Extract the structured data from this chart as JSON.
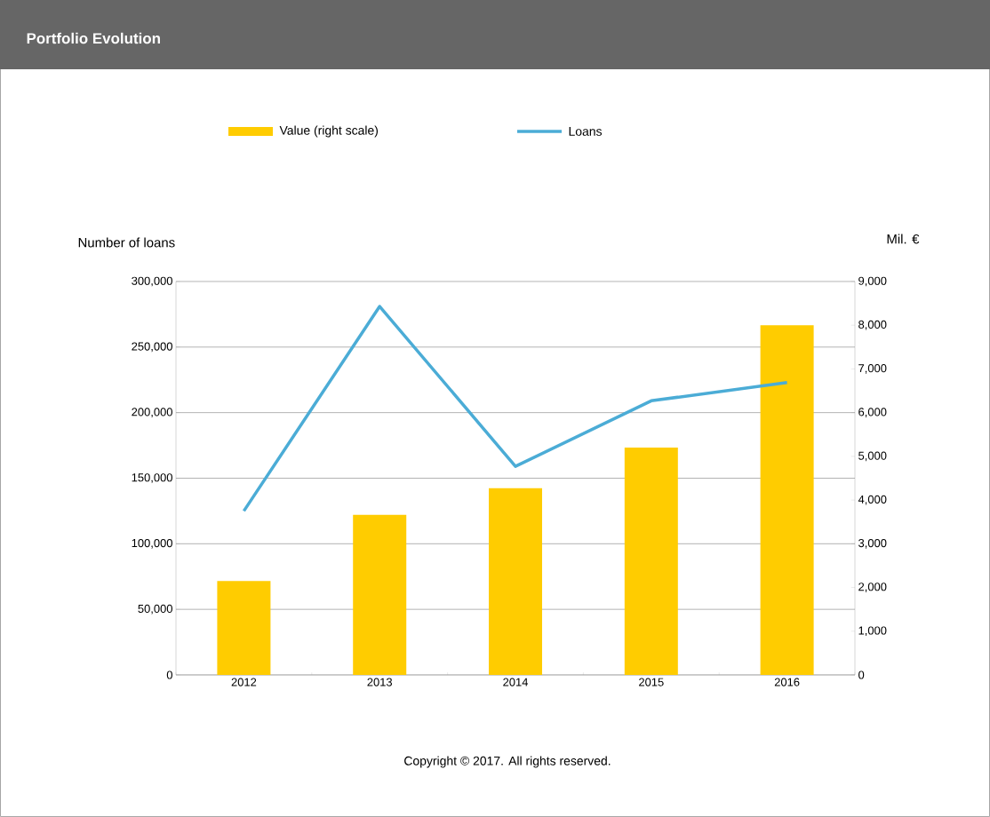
{
  "chart_data": {
    "type": "bar",
    "title": "Portfolio Evolution",
    "ylabel": "Number of loans",
    "y2label": "Mil. €",
    "categories": [
      "2012",
      "2013",
      "2014",
      "2015",
      "2016"
    ],
    "series": [
      {
        "name": "Value (right scale)",
        "axis": "y2",
        "color": "#ffcc00",
        "values": [
          2150,
          3660,
          4270,
          5200,
          8000
        ]
      },
      {
        "name": "Loans",
        "type": "line",
        "color": "#4bacd6",
        "values": [
          125000,
          281000,
          159000,
          209000,
          223000
        ]
      }
    ],
    "ylim": [
      0,
      300000
    ],
    "yticks": [
      0,
      {
        "value": 50000,
        "label": "50,000"
      },
      {
        "value": 100000,
        "label": "100,000"
      },
      {
        "value": 150000,
        "label": "150,000"
      },
      {
        "value": 200000,
        "label": "200,000"
      },
      {
        "value": 250000,
        "label": "250,000"
      },
      {
        "value": 300000,
        "label": "300,000"
      }
    ],
    "y2lim": [
      0,
      9000
    ],
    "y2ticks": [
      0,
      {
        "value": 1000,
        "label": "1,000"
      },
      {
        "value": 2000,
        "label": "2,000"
      },
      {
        "value": 3000,
        "label": "3,000"
      },
      {
        "value": 4000,
        "label": "4,000"
      },
      {
        "value": 5000,
        "label": "5,000"
      },
      {
        "value": 6000,
        "label": "6,000"
      },
      {
        "value": 7000,
        "label": "7,000"
      },
      {
        "value": 8000,
        "label": "8,000"
      },
      {
        "value": 9000,
        "label": "9,000"
      }
    ],
    "grid": "y",
    "legend": "top",
    "annotations": [
      "Copyright © 2017. All rights reserved."
    ]
  }
}
